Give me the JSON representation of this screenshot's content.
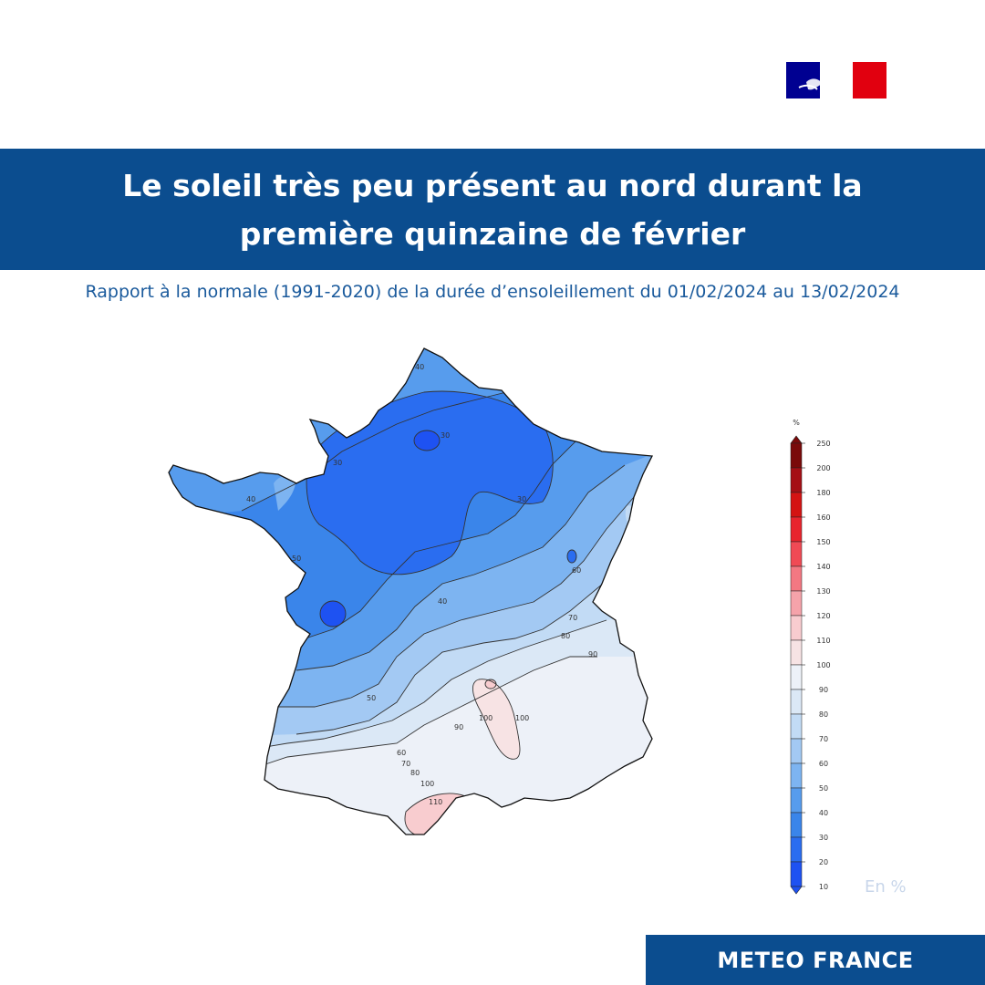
{
  "header": {
    "title_line1": "Le soleil très peu présent au nord durant la",
    "title_line2": "première quinzaine de février",
    "subtitle": "Rapport à la normale (1991-2020) de la durée d’ensoleillement du 01/02/2024 au 13/02/2024"
  },
  "logo": {
    "icon": "marianne-logo",
    "colors": [
      "#000091",
      "#ffffff",
      "#e1000f"
    ]
  },
  "map": {
    "contour_labels": [
      "40",
      "30",
      "30",
      "40",
      "50",
      "30",
      "40",
      "50",
      "60",
      "70",
      "80",
      "90",
      "100",
      "90",
      "100",
      "60",
      "70",
      "80",
      "100",
      "110"
    ]
  },
  "legend": {
    "unit_top": "%",
    "unit_label": "En %",
    "ticks": [
      "250",
      "200",
      "180",
      "160",
      "150",
      "140",
      "130",
      "120",
      "110",
      "100",
      "90",
      "80",
      "70",
      "60",
      "50",
      "40",
      "30",
      "20",
      "10"
    ],
    "colors": [
      "#7a0a0a",
      "#a50f15",
      "#d41313",
      "#e8242e",
      "#f04a55",
      "#f37882",
      "#f5a3aa",
      "#f8cccf",
      "#f7e3e4",
      "#edf1f8",
      "#dbe8f6",
      "#c2dbf5",
      "#a3c9f3",
      "#7db4f1",
      "#579ced",
      "#3a85ea",
      "#2a6df0",
      "#1e52f2"
    ]
  },
  "footer": {
    "brand": "METEO FRANCE"
  }
}
